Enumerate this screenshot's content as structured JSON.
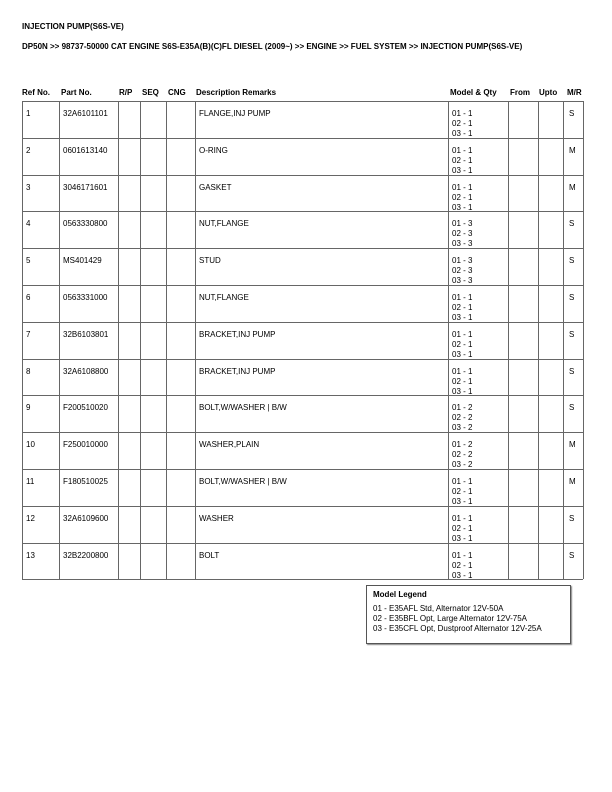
{
  "header": {
    "title": "INJECTION PUMP(S6S-VE)",
    "breadcrumb": "DP50N >> 98737-50000 CAT ENGINE S6S-E35A(B)(C)FL DIESEL (2009~) >> ENGINE >> FUEL SYSTEM >> INJECTION PUMP(S6S-VE)"
  },
  "table": {
    "columns": [
      "Ref No.",
      "Part No.",
      "R/P",
      "SEQ",
      "CNG",
      "Description Remarks",
      "Model & Qty",
      "From",
      "Upto",
      "M/R"
    ],
    "rows": [
      {
        "ref": "1",
        "part": "32A6101101",
        "desc": "FLANGE,INJ PUMP",
        "models": [
          "01 - 1",
          "02 - 1",
          "03 - 1"
        ],
        "mr": "S"
      },
      {
        "ref": "2",
        "part": "0601613140",
        "desc": "O-RING",
        "models": [
          "01 - 1",
          "02 - 1",
          "03 - 1"
        ],
        "mr": "M"
      },
      {
        "ref": "3",
        "part": "3046171601",
        "desc": "GASKET",
        "models": [
          "01 - 1",
          "02 - 1",
          "03 - 1"
        ],
        "mr": "M"
      },
      {
        "ref": "4",
        "part": "0563330800",
        "desc": "NUT,FLANGE",
        "models": [
          "01 - 3",
          "02 - 3",
          "03 - 3"
        ],
        "mr": "S"
      },
      {
        "ref": "5",
        "part": "MS401429",
        "desc": "STUD",
        "models": [
          "01 - 3",
          "02 - 3",
          "03 - 3"
        ],
        "mr": "S"
      },
      {
        "ref": "6",
        "part": "0563331000",
        "desc": "NUT,FLANGE",
        "models": [
          "01 - 1",
          "02 - 1",
          "03 - 1"
        ],
        "mr": "S"
      },
      {
        "ref": "7",
        "part": "32B6103801",
        "desc": "BRACKET,INJ PUMP",
        "models": [
          "01 - 1",
          "02 - 1",
          "03 - 1"
        ],
        "mr": "S"
      },
      {
        "ref": "8",
        "part": "32A6108800",
        "desc": "BRACKET,INJ PUMP",
        "models": [
          "01 - 1",
          "02 - 1",
          "03 - 1"
        ],
        "mr": "S"
      },
      {
        "ref": "9",
        "part": "F200510020",
        "desc": "BOLT,W/WASHER | B/W",
        "models": [
          "01 - 2",
          "02 - 2",
          "03 - 2"
        ],
        "mr": "S"
      },
      {
        "ref": "10",
        "part": "F250010000",
        "desc": "WASHER,PLAIN",
        "models": [
          "01 - 2",
          "02 - 2",
          "03 - 2"
        ],
        "mr": "M"
      },
      {
        "ref": "11",
        "part": "F180510025",
        "desc": "BOLT,W/WASHER | B/W",
        "models": [
          "01 - 1",
          "02 - 1",
          "03 - 1"
        ],
        "mr": "M"
      },
      {
        "ref": "12",
        "part": "32A6109600",
        "desc": "WASHER",
        "models": [
          "01 - 1",
          "02 - 1",
          "03 - 1"
        ],
        "mr": "S"
      },
      {
        "ref": "13",
        "part": "32B2200800",
        "desc": "BOLT",
        "models": [
          "01 - 1",
          "02 - 1",
          "03 - 1"
        ],
        "mr": "S"
      }
    ]
  },
  "legend": {
    "title": "Model Legend",
    "items": [
      "01 - E35AFL Std, Alternator 12V-50A",
      "02 - E35BFL Opt, Large Alternator 12V-75A",
      "03 - E35CFL Opt, Dustproof Alternator 12V-25A"
    ]
  }
}
